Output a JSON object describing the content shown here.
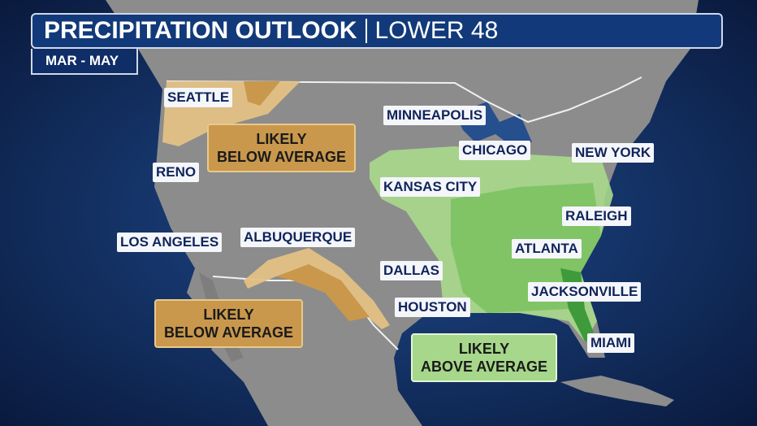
{
  "header": {
    "title": "PRECIPITATION OUTLOOK",
    "subtitle": "LOWER 48",
    "period": "MAR - MAY"
  },
  "cities": [
    "SEATTLE",
    "MINNEAPOLIS",
    "CHICAGO",
    "NEW YORK",
    "RENO",
    "KANSAS CITY",
    "RALEIGH",
    "LOS ANGELES",
    "ALBUQUERQUE",
    "ATLANTA",
    "DALLAS",
    "JACKSONVILLE",
    "HOUSTON",
    "MIAMI"
  ],
  "regions": [
    {
      "lines": [
        "LIKELY",
        "BELOW AVERAGE"
      ]
    },
    {
      "lines": [
        "LIKELY",
        "BELOW AVERAGE"
      ]
    },
    {
      "lines": [
        "LIKELY",
        "ABOVE AVERAGE"
      ]
    }
  ]
}
